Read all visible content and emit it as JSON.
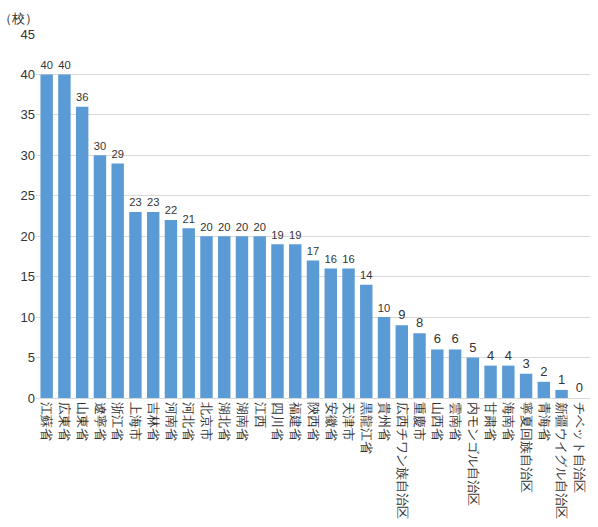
{
  "chart_data": {
    "type": "bar",
    "ylabel": "（校）",
    "categories": [
      "江蘇省",
      "広東省",
      "山東省",
      "遼寧省",
      "浙江省",
      "上海市",
      "吉林省",
      "河南省",
      "河北省",
      "北京市",
      "湖北省",
      "湖南省",
      "江西",
      "四川省",
      "福建省",
      "陝西省",
      "安徽省",
      "天津市",
      "黒龍江省",
      "貴州省",
      "広西チワン族自治区",
      "重慶市",
      "山西省",
      "雲南省",
      "内モンゴル自治区",
      "甘粛省",
      "海南省",
      "寧夏回族自治区",
      "青海省",
      "新疆ウイグル自治区",
      "チベット自治区"
    ],
    "values": [
      40,
      40,
      36,
      30,
      29,
      23,
      23,
      22,
      21,
      20,
      20,
      20,
      20,
      19,
      19,
      17,
      16,
      16,
      14,
      10,
      9,
      8,
      6,
      6,
      5,
      4,
      4,
      3,
      2,
      1,
      0
    ],
    "color": "#5b9bd5",
    "ylim": [
      0,
      45
    ],
    "yticks": [
      0,
      5,
      10,
      15,
      20,
      25,
      30,
      35,
      40,
      45
    ],
    "grid": true,
    "data_labels": true
  }
}
